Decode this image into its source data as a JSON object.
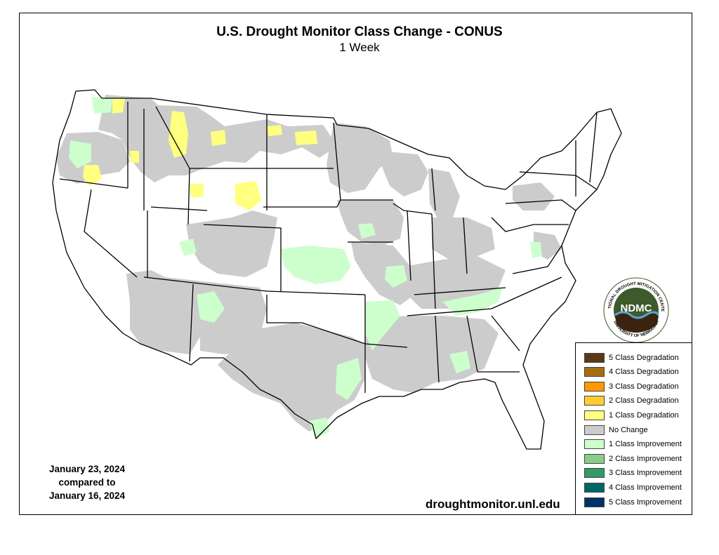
{
  "header": {
    "title": "U.S. Drought Monitor Class Change - CONUS",
    "subtitle": "1 Week"
  },
  "dates": {
    "current": "January 23, 2024",
    "compared_label": "compared to",
    "previous": "January 16, 2024"
  },
  "source": "droughtmonitor.unl.edu",
  "logo": {
    "acronym": "NDMC",
    "ring_top": "NATIONAL DROUGHT MITIGATION CENTER",
    "ring_bottom": "UNIVERSITY OF NEBRASKA"
  },
  "legend": [
    {
      "label": "5 Class Degradation",
      "color": "#5a3a14"
    },
    {
      "label": "4 Class Degradation",
      "color": "#a66c12"
    },
    {
      "label": "3 Class Degradation",
      "color": "#ff9900"
    },
    {
      "label": "2 Class Degradation",
      "color": "#ffcc33"
    },
    {
      "label": "1 Class Degradation",
      "color": "#ffff80"
    },
    {
      "label": "No Change",
      "color": "#cccccc"
    },
    {
      "label": "1 Class Improvement",
      "color": "#ccffcc"
    },
    {
      "label": "2 Class Improvement",
      "color": "#88cc88"
    },
    {
      "label": "3 Class Improvement",
      "color": "#339966"
    },
    {
      "label": "4 Class Improvement",
      "color": "#006666"
    },
    {
      "label": "5 Class Improvement",
      "color": "#003366"
    }
  ],
  "colors": {
    "no_change": "#cccccc",
    "improvement_1": "#ccffcc",
    "degradation_1": "#ffff80",
    "border": "#000000",
    "logo_green": "#3c5a2a"
  }
}
